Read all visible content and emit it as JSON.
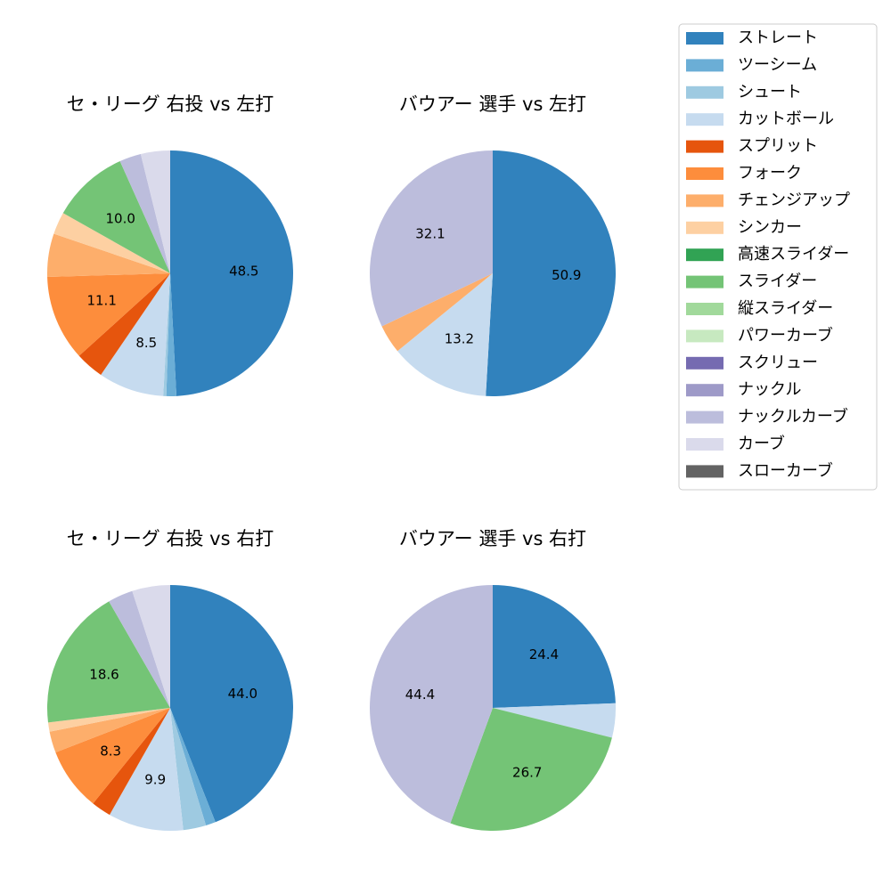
{
  "chart_data": [
    {
      "type": "pie",
      "title": "セ・リーグ 右投 vs 左打",
      "categories": [
        "ストレート",
        "ツーシーム",
        "シュート",
        "カットボール",
        "スプリット",
        "フォーク",
        "チェンジアップ",
        "シンカー",
        "スライダー",
        "ナックルカーブ",
        "カーブ"
      ],
      "values": [
        48.5,
        1.3,
        0.4,
        8.5,
        3.7,
        11.1,
        5.6,
        2.9,
        10.0,
        2.8,
        3.8
      ],
      "value_labels": [
        "48.5",
        null,
        null,
        "8.5",
        null,
        "11.1",
        null,
        null,
        "10.0",
        null,
        null
      ],
      "colors": [
        "#3182bd",
        "#6baed6",
        "#9ecae1",
        "#c6dbef",
        "#e6550d",
        "#fd8d3c",
        "#fdae6b",
        "#fdd0a2",
        "#74c476",
        "#bcbddc",
        "#dadaeb"
      ]
    },
    {
      "type": "pie",
      "title": "バウアー 選手 vs 左打",
      "categories": [
        "ストレート",
        "カットボール",
        "チェンジアップ",
        "ナックルカーブ"
      ],
      "values": [
        50.9,
        13.2,
        3.8,
        32.1
      ],
      "colors": [
        "#3182bd",
        "#c6dbef",
        "#fdae6b",
        "#bcbddc"
      ]
    },
    {
      "type": "pie",
      "title": "セ・リーグ 右投 vs 右打",
      "categories": [
        "ストレート",
        "ツーシーム",
        "シュート",
        "カットボール",
        "スプリット",
        "フォーク",
        "チェンジアップ",
        "シンカー",
        "スライダー",
        "ナックルカーブ",
        "カーブ"
      ],
      "values": [
        44.0,
        1.3,
        3.0,
        9.9,
        2.6,
        8.3,
        2.8,
        1.2,
        18.6,
        3.3,
        5.0
      ],
      "value_labels": [
        "44.0",
        null,
        null,
        "9.9",
        null,
        "8.3",
        null,
        null,
        "18.6",
        null,
        null
      ],
      "colors": [
        "#3182bd",
        "#6baed6",
        "#9ecae1",
        "#c6dbef",
        "#e6550d",
        "#fd8d3c",
        "#fdae6b",
        "#fdd0a2",
        "#74c476",
        "#bcbddc",
        "#dadaeb"
      ]
    },
    {
      "type": "pie",
      "title": "バウアー 選手 vs 右打",
      "categories": [
        "ストレート",
        "カットボール",
        "スライダー",
        "ナックルカーブ"
      ],
      "values": [
        24.4,
        4.5,
        26.7,
        44.4
      ],
      "colors": [
        "#3182bd",
        "#c6dbef",
        "#74c476",
        "#bcbddc"
      ]
    }
  ],
  "legend": {
    "labels": [
      "ストレート",
      "ツーシーム",
      "シュート",
      "カットボール",
      "スプリット",
      "フォーク",
      "チェンジアップ",
      "シンカー",
      "高速スライダー",
      "スライダー",
      "縦スライダー",
      "パワーカーブ",
      "スクリュー",
      "ナックル",
      "ナックルカーブ",
      "カーブ",
      "スローカーブ"
    ],
    "colors": [
      "#3182bd",
      "#6baed6",
      "#9ecae1",
      "#c6dbef",
      "#e6550d",
      "#fd8d3c",
      "#fdae6b",
      "#fdd0a2",
      "#31a354",
      "#74c476",
      "#a1d99b",
      "#c7e9c0",
      "#756bb1",
      "#9e9ac8",
      "#bcbddc",
      "#dadaeb",
      "#636363"
    ]
  }
}
